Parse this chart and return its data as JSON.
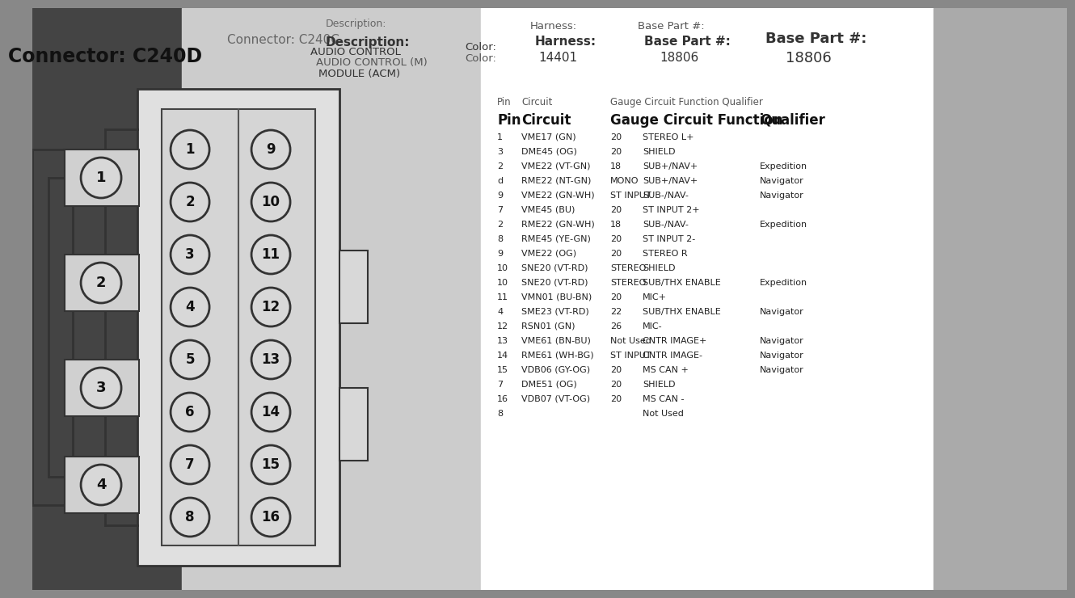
{
  "title_bold": "Connector: C240D",
  "title_light": "Connector: C240C",
  "desc_label_top": "Description:",
  "desc_label_bold": "Description:",
  "desc_line1_light": "AUDIO CONTROL",
  "desc_line1_bold": "AUDIO CONTROL (M)",
  "desc_line2": "MODULE (ACM)",
  "color_label": "Color:",
  "harness_label_top": "Harness:",
  "harness_label_bold": "Harness:",
  "harness_value": "14401",
  "base_label_top": "Base Part #:",
  "base_label_bold": "Base Part #:",
  "base_value": "18806",
  "bg_dark": "#888888",
  "bg_mid": "#cccccc",
  "bg_white": "#ffffff",
  "bg_right_gray": "#aaaaaa",
  "table_header1": [
    "Pin",
    "Circuit",
    "Gauge Circuit Function Qualifier"
  ],
  "table_header2_bold": [
    "Pin",
    "Circuit",
    "Gauge Circuit Function",
    "Qualifier"
  ],
  "table_rows": [
    [
      "1",
      "VME17 (GN)",
      "20",
      "STEREO L+",
      ""
    ],
    [
      "3",
      "DME45 (OG)",
      "20",
      "SHIELD",
      ""
    ],
    [
      "2",
      "VME22 (VT-GN)",
      "18",
      "SUB+/NAV+",
      "Expedition"
    ],
    [
      "d",
      "RME22 (NT-GN)",
      "MONO",
      "SUB+/NAV+",
      "Navigator"
    ],
    [
      "9",
      "VME22 (GN-WH)",
      "ST INPUT",
      "SUB-/NAV-",
      "Navigator"
    ],
    [
      "7",
      "VME45 (BU)",
      "20",
      "ST INPUT 2+",
      ""
    ],
    [
      "2",
      "RME22 (GN-WH)",
      "18",
      "SUB-/NAV-",
      "Expedition"
    ],
    [
      "8",
      "RME45 (YE-GN)",
      "20",
      "ST INPUT 2-",
      ""
    ],
    [
      "9",
      "VME22 (OG)",
      "20",
      "STEREO R",
      ""
    ],
    [
      "10",
      "SNE20 (VT-RD)",
      "STEREO",
      "SHIELD",
      ""
    ],
    [
      "10",
      "SNE20 (VT-RD)",
      "STEREO",
      "SUB/THX ENABLE",
      "Expedition"
    ],
    [
      "11",
      "VMN01 (BU-BN)",
      "20",
      "MIC+",
      ""
    ],
    [
      "4",
      "SME23 (VT-RD)",
      "22",
      "SUB/THX ENABLE",
      "Navigator"
    ],
    [
      "12",
      "RSN01 (GN)",
      "26",
      "MIC-",
      ""
    ],
    [
      "13",
      "VME61 (BN-BU)",
      "Not Used",
      "CNTR IMAGE+",
      "Navigator"
    ],
    [
      "14",
      "RME61 (WH-BG)",
      "ST INPUT",
      "CNTR IMAGE-",
      "Navigator"
    ],
    [
      "15",
      "VDB06 (GY-OG)",
      "20",
      "MS CAN +",
      "Navigator"
    ],
    [
      "7",
      "DME51 (OG)",
      "20",
      "SHIELD",
      ""
    ],
    [
      "16",
      "VDB07 (VT-OG)",
      "20",
      "MS CAN -",
      ""
    ],
    [
      "8",
      "",
      "",
      "Not Used",
      ""
    ]
  ]
}
